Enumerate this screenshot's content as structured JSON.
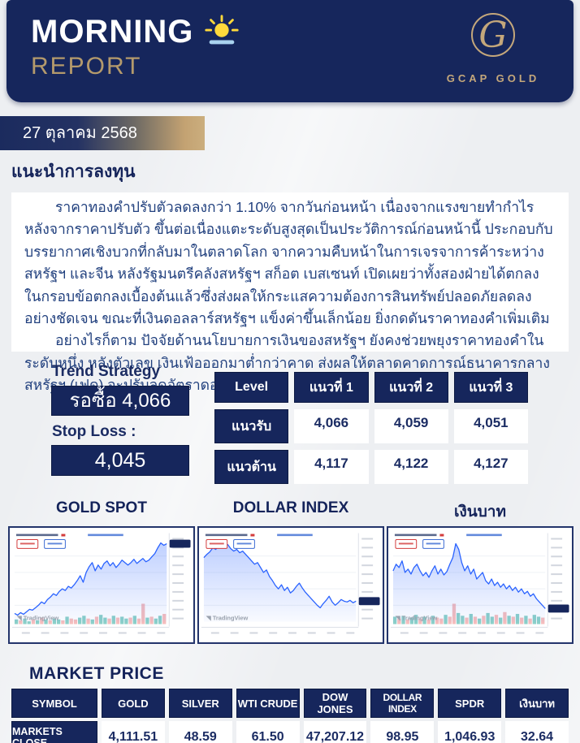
{
  "header": {
    "title_line1": "MORNING",
    "title_line2": "REPORT",
    "brand": "GCAP GOLD",
    "logo_letter": "G"
  },
  "date_banner": {
    "text": "27 ตุลาคม 2568"
  },
  "advice": {
    "section_title": "แนะนำการลงทุน",
    "paragraph1": "ราคาทองคำปรับตัวลดลงกว่า 1.10% จากวันก่อนหน้า เนื่องจากแรงขายทำกำไรหลังจากราคาปรับตัว ขึ้นต่อเนื่องแตะระดับสูงสุดเป็นประวัติการณ์ก่อนหน้านี้ ประกอบกับบรรยากาศเชิงบวกที่กลับมาในตลาดโลก จากความคืบหน้าในการเจรจาการค้าระหว่างสหรัฐฯ และจีน หลังรัฐมนตรีคลังสหรัฐฯ สก็อต เบสเซนท์ เปิดเผยว่าทั้งสองฝ่ายได้ตกลงในกรอบข้อตกลงเบื้องต้นแล้วซึ่งส่งผลให้กระแสความต้องการสินทรัพย์ปลอดภัยลดลงอย่างชัดเจน ขณะที่เงินดอลลาร์สหรัฐฯ แข็งค่าขึ้นเล็กน้อย ยิ่งกดดันราคาทองคำเพิ่มเติม",
    "paragraph2": "อย่างไรก็ตาม ปัจจัยด้านนโยบายการเงินของสหรัฐฯ ยังคงช่วยพยุงราคาทองคำในระดับหนึ่ง หลังตัวเลข เงินเฟ้อออกมาต่ำกว่าคาด ส่งผลให้ตลาดคาดการณ์ธนาคารกลางสหรัฐฯ (เฟด) จะปรับลดอัตราดอกเบี้ย"
  },
  "trend": {
    "title": "Trend Strategy",
    "signal": "รอซื้อ 4,066",
    "stop_loss_label": "Stop Loss :",
    "stop_loss_value": "4,045"
  },
  "levels": {
    "headers": [
      "Level",
      "แนวที่ 1",
      "แนวที่ 2",
      "แนวที่ 3"
    ],
    "rows": [
      {
        "label": "แนวรับ",
        "values": [
          "4,066",
          "4,059",
          "4,051"
        ]
      },
      {
        "label": "แนวต้าน",
        "values": [
          "4,117",
          "4,122",
          "4,127"
        ]
      }
    ]
  },
  "chart_data": [
    {
      "type": "area",
      "title": "GOLD SPOT",
      "watermark": "TradingView",
      "line": [
        10,
        8,
        11,
        9,
        12,
        15,
        14,
        17,
        20,
        24,
        22,
        27,
        30,
        34,
        32,
        37,
        40,
        38,
        43,
        41,
        45,
        50,
        56,
        48,
        60,
        67,
        72,
        62,
        69,
        64,
        71,
        74,
        68,
        72,
        66,
        70,
        75,
        72,
        69,
        72,
        76,
        71,
        74,
        77,
        73,
        75,
        79,
        83,
        90,
        96,
        93,
        95
      ],
      "volume_h": [
        5,
        4,
        6,
        3,
        5,
        4,
        7,
        5,
        4,
        6,
        5,
        4,
        8,
        6,
        5,
        7,
        9,
        6,
        5,
        8,
        10,
        7,
        6,
        9,
        7,
        8,
        6,
        7,
        9,
        6,
        22,
        7,
        8,
        6,
        9,
        11
      ],
      "volume_c": [
        "g",
        "r",
        "g",
        "g",
        "r",
        "g",
        "r",
        "g",
        "r",
        "g",
        "g",
        "r",
        "g",
        "r",
        "r",
        "g",
        "g",
        "r",
        "g",
        "r",
        "g",
        "g",
        "r",
        "g",
        "r",
        "g",
        "g",
        "r",
        "g",
        "r",
        "r",
        "g",
        "r",
        "g",
        "g",
        "r"
      ]
    },
    {
      "type": "area",
      "title": "DOLLAR INDEX",
      "watermark": "TradingView",
      "line": [
        78,
        82,
        85,
        90,
        88,
        93,
        95,
        91,
        94,
        89,
        86,
        88,
        84,
        86,
        82,
        78,
        74,
        70,
        72,
        66,
        60,
        63,
        55,
        50,
        44,
        40,
        45,
        38,
        42,
        35,
        38,
        43,
        47,
        41,
        36,
        32,
        28,
        24,
        20,
        17,
        22,
        26,
        31,
        24,
        20,
        23,
        27,
        25,
        24,
        26,
        23,
        25
      ],
      "volume_h": [],
      "volume_c": []
    },
    {
      "type": "area",
      "title": "เงินบาท",
      "watermark": "TradingView",
      "line": [
        62,
        70,
        66,
        74,
        60,
        64,
        58,
        66,
        70,
        62,
        56,
        60,
        54,
        62,
        68,
        58,
        64,
        57,
        61,
        70,
        78,
        95,
        88,
        72,
        62,
        68,
        58,
        64,
        52,
        56,
        60,
        50,
        46,
        52,
        44,
        48,
        42,
        46,
        40,
        44,
        38,
        42,
        36,
        40,
        34,
        37,
        31,
        34,
        28,
        24,
        20,
        16
      ],
      "volume_h": [
        8,
        6,
        9,
        5,
        7,
        10,
        6,
        8,
        5,
        9,
        7,
        6,
        10,
        8,
        22,
        12,
        9,
        7,
        11,
        8,
        6,
        9,
        12,
        8,
        10,
        7,
        13,
        9,
        8,
        11,
        7,
        9,
        6,
        10,
        8,
        7
      ],
      "volume_c": [
        "g",
        "r",
        "g",
        "r",
        "g",
        "g",
        "r",
        "g",
        "r",
        "g",
        "r",
        "r",
        "g",
        "r",
        "r",
        "g",
        "g",
        "r",
        "g",
        "r",
        "g",
        "r",
        "g",
        "g",
        "r",
        "g",
        "r",
        "g",
        "r",
        "g",
        "r",
        "g",
        "r",
        "g",
        "g",
        "r"
      ]
    }
  ],
  "market": {
    "title": "MARKET PRICE",
    "headers": [
      "SYMBOL",
      "GOLD",
      "SILVER",
      "WTI CRUDE",
      "DOW JONES",
      "DOLLAR INDEX",
      "SPDR",
      "เงินบาท"
    ],
    "row_label": "MARKETS CLOSE",
    "values": [
      "4,111.51",
      "48.59",
      "61.50",
      "47,207.12",
      "98.95",
      "1,046.93",
      "32.64"
    ]
  },
  "colors": {
    "navy": "#16265c",
    "gold": "#b49a6c",
    "logo_gold": "#c4a77b",
    "chart_line": "#2962ff",
    "volume_up": "#4db6ac",
    "volume_down": "#ef9a9a",
    "sun_yellow": "#ffd93b",
    "sun_bar_blue": "#a9d2ef"
  }
}
